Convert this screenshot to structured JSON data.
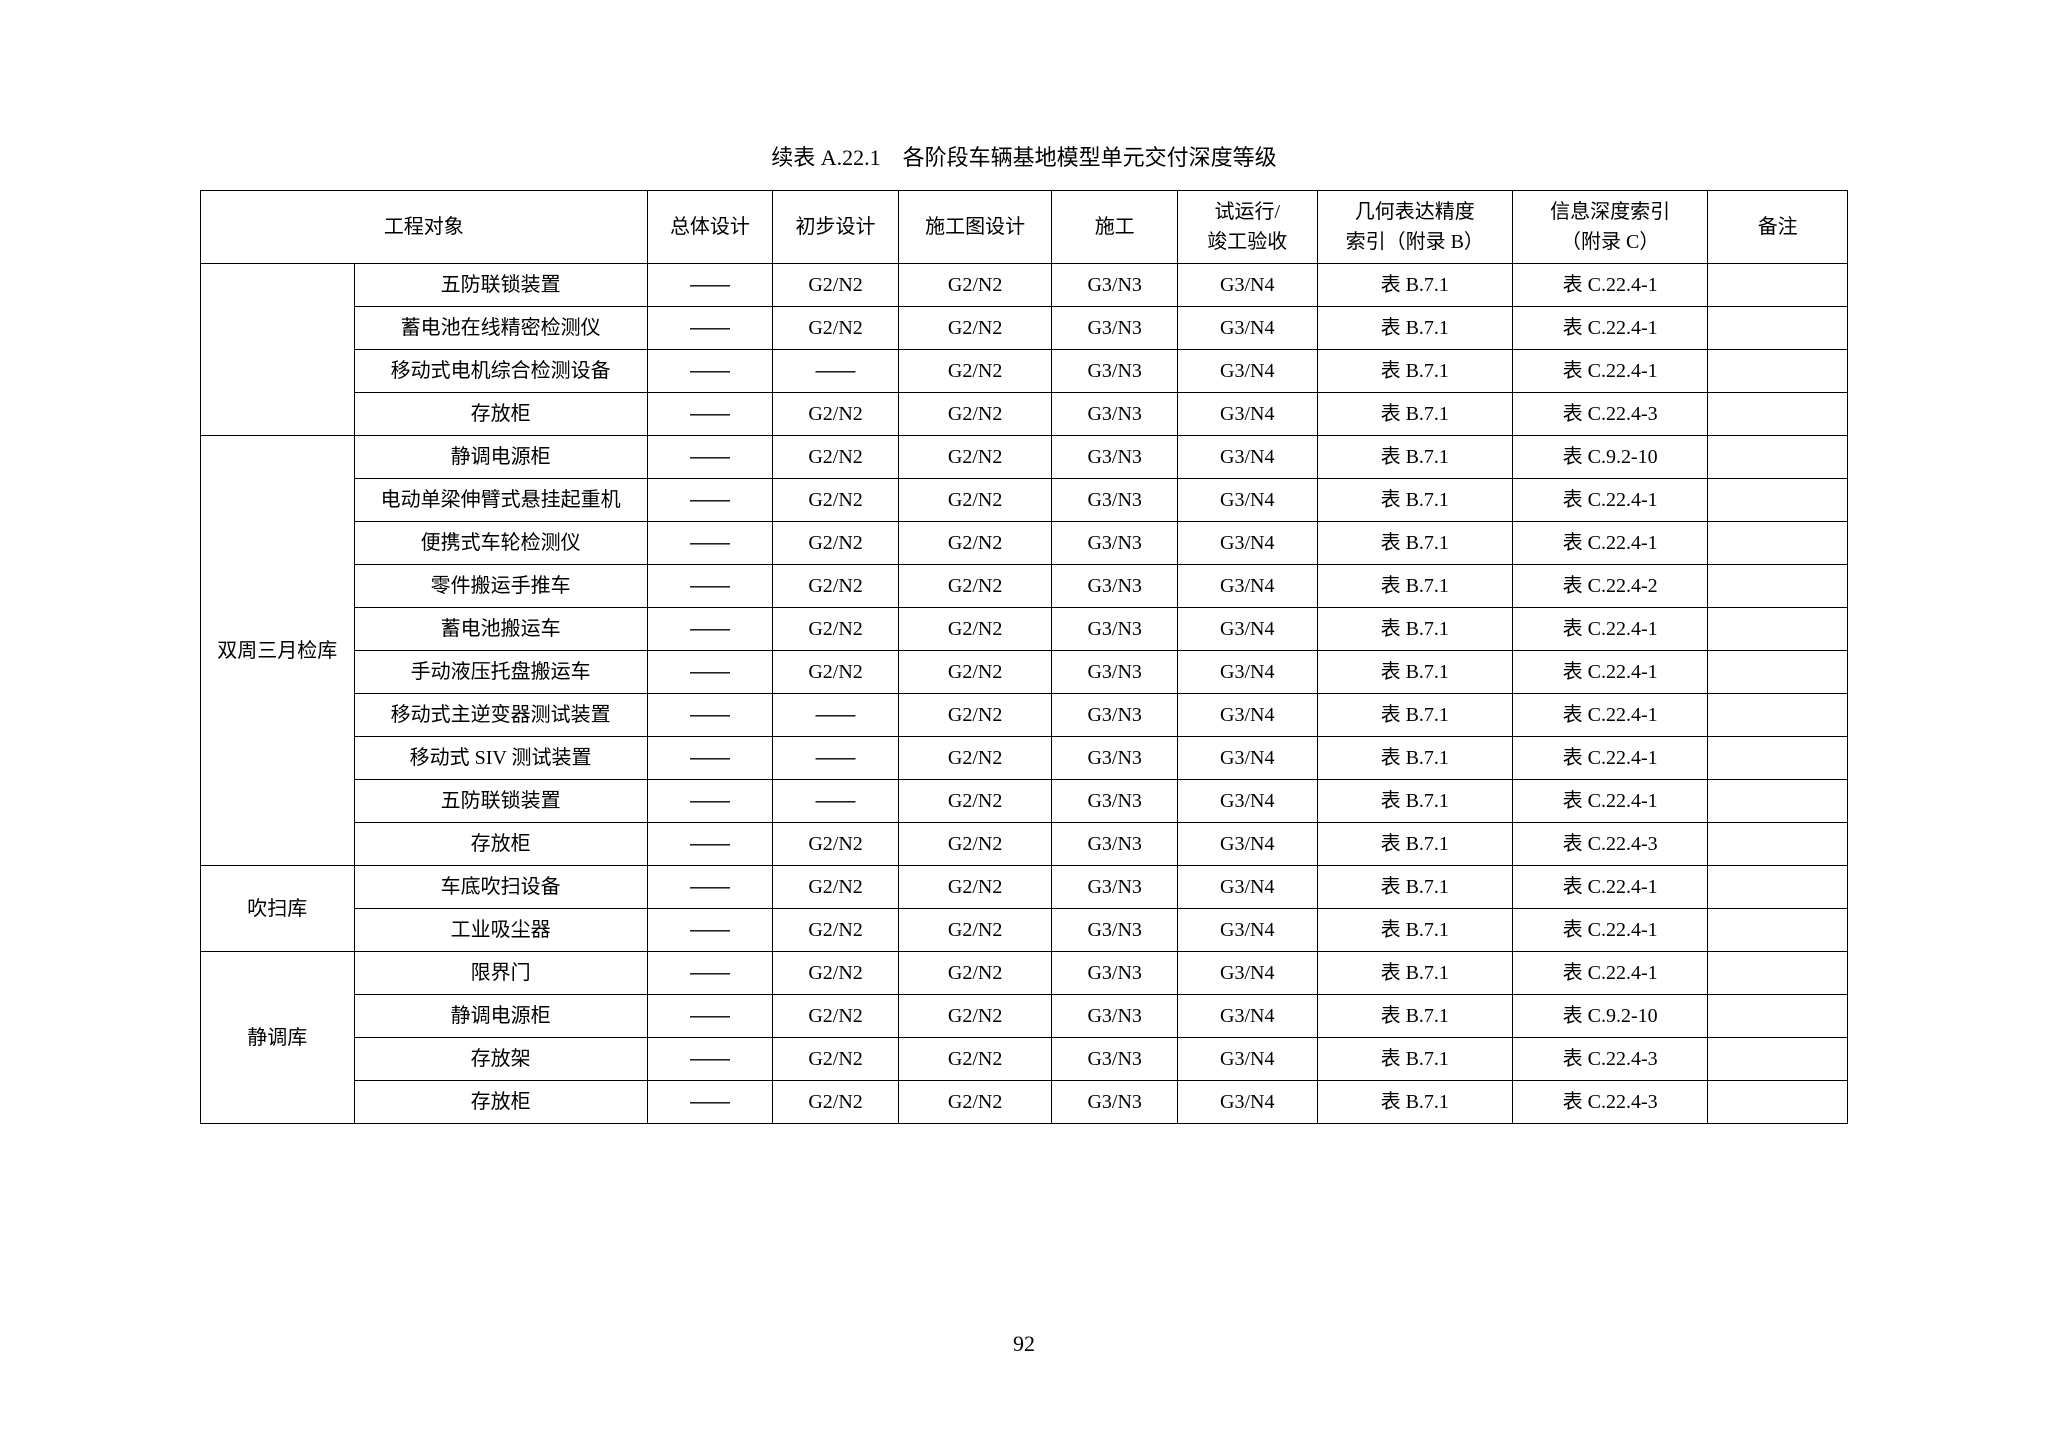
{
  "caption": "续表 A.22.1　各阶段车辆基地模型单元交付深度等级",
  "page_number": "92",
  "dash": "——",
  "headers": {
    "object": "工程对象",
    "overall": "总体设计",
    "preliminary": "初步设计",
    "construction_drawing": "施工图设计",
    "construction": "施工",
    "trial_line1": "试运行/",
    "trial_line2": "竣工验收",
    "geometry_line1": "几何表达精度",
    "geometry_line2": "索引（附录 B）",
    "info_line1": "信息深度索引",
    "info_line2": "（附录 C）",
    "remark": "备注"
  },
  "groups": [
    {
      "category": "",
      "rows": [
        {
          "obj": "五防联锁装置",
          "c": [
            "——",
            "G2/N2",
            "G2/N2",
            "G3/N3",
            "G3/N4",
            "表 B.7.1",
            "表 C.22.4-1",
            ""
          ]
        },
        {
          "obj": "蓄电池在线精密检测仪",
          "c": [
            "——",
            "G2/N2",
            "G2/N2",
            "G3/N3",
            "G3/N4",
            "表 B.7.1",
            "表 C.22.4-1",
            ""
          ]
        },
        {
          "obj": "移动式电机综合检测设备",
          "c": [
            "——",
            "——",
            "G2/N2",
            "G3/N3",
            "G3/N4",
            "表 B.7.1",
            "表 C.22.4-1",
            ""
          ]
        },
        {
          "obj": "存放柜",
          "c": [
            "——",
            "G2/N2",
            "G2/N2",
            "G3/N3",
            "G3/N4",
            "表 B.7.1",
            "表 C.22.4-3",
            ""
          ]
        }
      ]
    },
    {
      "category": "双周三月检库",
      "rows": [
        {
          "obj": "静调电源柜",
          "c": [
            "——",
            "G2/N2",
            "G2/N2",
            "G3/N3",
            "G3/N4",
            "表 B.7.1",
            "表 C.9.2-10",
            ""
          ]
        },
        {
          "obj": "电动单梁伸臂式悬挂起重机",
          "c": [
            "——",
            "G2/N2",
            "G2/N2",
            "G3/N3",
            "G3/N4",
            "表 B.7.1",
            "表 C.22.4-1",
            ""
          ]
        },
        {
          "obj": "便携式车轮检测仪",
          "c": [
            "——",
            "G2/N2",
            "G2/N2",
            "G3/N3",
            "G3/N4",
            "表 B.7.1",
            "表 C.22.4-1",
            ""
          ]
        },
        {
          "obj": "零件搬运手推车",
          "c": [
            "——",
            "G2/N2",
            "G2/N2",
            "G3/N3",
            "G3/N4",
            "表 B.7.1",
            "表 C.22.4-2",
            ""
          ]
        },
        {
          "obj": "蓄电池搬运车",
          "c": [
            "——",
            "G2/N2",
            "G2/N2",
            "G3/N3",
            "G3/N4",
            "表 B.7.1",
            "表 C.22.4-1",
            ""
          ]
        },
        {
          "obj": "手动液压托盘搬运车",
          "c": [
            "——",
            "G2/N2",
            "G2/N2",
            "G3/N3",
            "G3/N4",
            "表 B.7.1",
            "表 C.22.4-1",
            ""
          ]
        },
        {
          "obj": "移动式主逆变器测试装置",
          "c": [
            "——",
            "——",
            "G2/N2",
            "G3/N3",
            "G3/N4",
            "表 B.7.1",
            "表 C.22.4-1",
            ""
          ]
        },
        {
          "obj": "移动式 SIV 测试装置",
          "c": [
            "——",
            "——",
            "G2/N2",
            "G3/N3",
            "G3/N4",
            "表 B.7.1",
            "表 C.22.4-1",
            ""
          ]
        },
        {
          "obj": "五防联锁装置",
          "c": [
            "——",
            "——",
            "G2/N2",
            "G3/N3",
            "G3/N4",
            "表 B.7.1",
            "表 C.22.4-1",
            ""
          ]
        },
        {
          "obj": "存放柜",
          "c": [
            "——",
            "G2/N2",
            "G2/N2",
            "G3/N3",
            "G3/N4",
            "表 B.7.1",
            "表 C.22.4-3",
            ""
          ]
        }
      ]
    },
    {
      "category": "吹扫库",
      "rows": [
        {
          "obj": "车底吹扫设备",
          "c": [
            "——",
            "G2/N2",
            "G2/N2",
            "G3/N3",
            "G3/N4",
            "表 B.7.1",
            "表 C.22.4-1",
            ""
          ]
        },
        {
          "obj": "工业吸尘器",
          "c": [
            "——",
            "G2/N2",
            "G2/N2",
            "G3/N3",
            "G3/N4",
            "表 B.7.1",
            "表 C.22.4-1",
            ""
          ]
        }
      ]
    },
    {
      "category": "静调库",
      "rows": [
        {
          "obj": "限界门",
          "c": [
            "——",
            "G2/N2",
            "G2/N2",
            "G3/N3",
            "G3/N4",
            "表 B.7.1",
            "表 C.22.4-1",
            ""
          ]
        },
        {
          "obj": "静调电源柜",
          "c": [
            "——",
            "G2/N2",
            "G2/N2",
            "G3/N3",
            "G3/N4",
            "表 B.7.1",
            "表 C.9.2-10",
            ""
          ]
        },
        {
          "obj": "存放架",
          "c": [
            "——",
            "G2/N2",
            "G2/N2",
            "G3/N3",
            "G3/N4",
            "表 B.7.1",
            "表 C.22.4-3",
            ""
          ]
        },
        {
          "obj": "存放柜",
          "c": [
            "——",
            "G2/N2",
            "G2/N2",
            "G3/N3",
            "G3/N4",
            "表 B.7.1",
            "表 C.22.4-3",
            ""
          ]
        }
      ]
    }
  ]
}
